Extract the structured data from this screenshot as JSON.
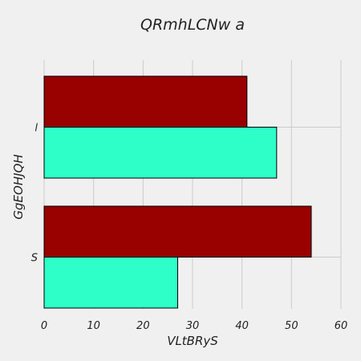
{
  "chart_data": {
    "type": "bar",
    "orientation": "horizontal",
    "title": "QRmhLCNw a",
    "xlabel": "VLtBRyS",
    "ylabel": "GgEOHJQH",
    "categories": [
      "l",
      "S"
    ],
    "series": [
      {
        "values": [
          41,
          54
        ],
        "color": "#990000"
      },
      {
        "values": [
          47,
          27
        ],
        "color": "#2effc8"
      }
    ],
    "xlim": [
      0,
      60
    ],
    "xticks": [
      0,
      10,
      20,
      30,
      40,
      50,
      60
    ],
    "grid": true
  }
}
